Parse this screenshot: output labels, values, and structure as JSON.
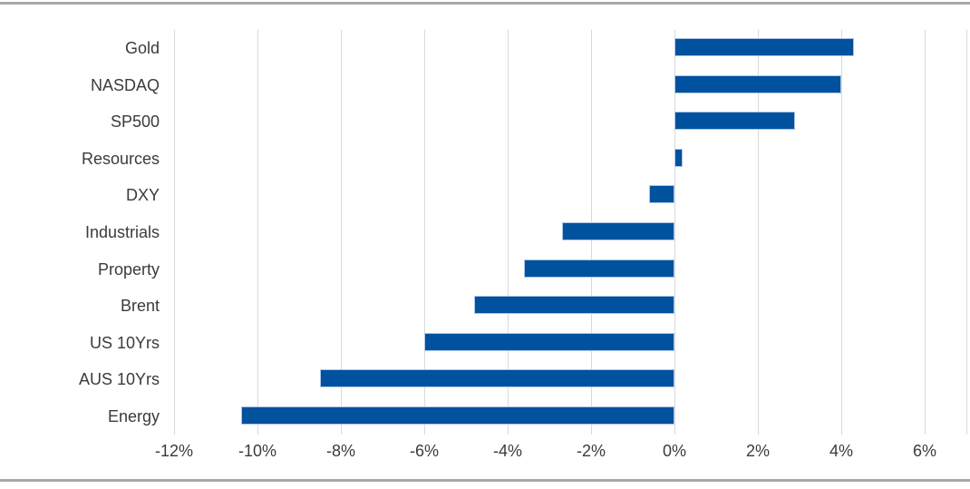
{
  "chart_data": {
    "type": "bar",
    "orientation": "horizontal",
    "title": "",
    "categories": [
      "Gold",
      "NASDAQ",
      "SP500",
      "Resources",
      "DXY",
      "Industrials",
      "Property",
      "Brent",
      "US 10Yrs",
      "AUS 10Yrs",
      "Energy"
    ],
    "values": [
      4.3,
      4.0,
      2.9,
      0.2,
      -0.6,
      -2.7,
      -3.6,
      -4.8,
      -6.0,
      -8.5,
      -10.4
    ],
    "value_unit": "%",
    "x_ticks": [
      {
        "value": -12,
        "label": "-12%"
      },
      {
        "value": -10,
        "label": "-10%"
      },
      {
        "value": -8,
        "label": "-8%"
      },
      {
        "value": -6,
        "label": "-6%"
      },
      {
        "value": -4,
        "label": "-4%"
      },
      {
        "value": -2,
        "label": "-2%"
      },
      {
        "value": 0,
        "label": "0%"
      },
      {
        "value": 2,
        "label": "2%"
      },
      {
        "value": 4,
        "label": "4%"
      },
      {
        "value": 6,
        "label": "6%"
      }
    ],
    "xlim": [
      -12,
      7
    ],
    "grid": true,
    "legend": "none",
    "colors": {
      "bar_fill": "#00519E",
      "bar_border": "#AEC6E8",
      "gridline": "#D9D9D9",
      "axis_text": "#3B3B3B",
      "frame_line": "#A7A7AD",
      "background": "#FFFFFF"
    }
  }
}
